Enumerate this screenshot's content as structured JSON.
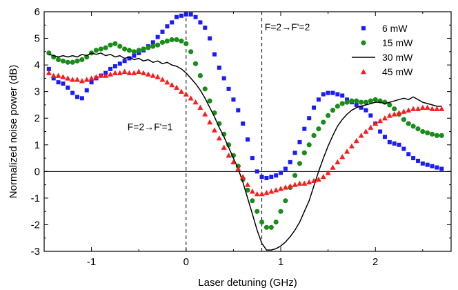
{
  "chart_data": {
    "type": "scatter",
    "xlabel": "Laser detuning (GHz)",
    "ylabel": "Normalized noise power (dB)",
    "xlim": [
      -1.5,
      2.8
    ],
    "ylim": [
      -3,
      6
    ],
    "x_ticks": [
      -1,
      0,
      1,
      2
    ],
    "x_tick_labels": [
      "-1",
      "0",
      "1",
      "2"
    ],
    "y_ticks": [
      -3,
      -2,
      -1,
      0,
      1,
      2,
      3,
      4,
      5,
      6
    ],
    "y_tick_labels": [
      "-3",
      "-2",
      "-1",
      "0",
      "1",
      "2",
      "3",
      "4",
      "5",
      "6"
    ],
    "grid": false,
    "legend_position": "top-right",
    "reference_lines": {
      "horizontal_y": 0,
      "vertical_x": [
        0,
        0.8
      ]
    },
    "annotations": [
      {
        "text": "F=2→F'=2",
        "x": 0.83,
        "y": 5.3
      },
      {
        "text": "F=2→F'=1",
        "x": -0.62,
        "y": 1.55
      }
    ],
    "series": [
      {
        "name": "6 mW",
        "marker": "square",
        "color": "#1a1aff",
        "x": [
          -1.45,
          -1.4,
          -1.35,
          -1.3,
          -1.25,
          -1.2,
          -1.15,
          -1.1,
          -1.05,
          -1.0,
          -0.95,
          -0.9,
          -0.85,
          -0.8,
          -0.75,
          -0.7,
          -0.65,
          -0.6,
          -0.55,
          -0.5,
          -0.45,
          -0.4,
          -0.35,
          -0.3,
          -0.25,
          -0.2,
          -0.15,
          -0.1,
          -0.05,
          0.0,
          0.05,
          0.1,
          0.15,
          0.2,
          0.25,
          0.3,
          0.35,
          0.4,
          0.45,
          0.5,
          0.55,
          0.6,
          0.65,
          0.7,
          0.75,
          0.8,
          0.85,
          0.9,
          0.95,
          1.0,
          1.05,
          1.1,
          1.15,
          1.2,
          1.25,
          1.3,
          1.35,
          1.4,
          1.45,
          1.5,
          1.55,
          1.6,
          1.65,
          1.7,
          1.75,
          1.8,
          1.85,
          1.9,
          1.95,
          2.0,
          2.05,
          2.1,
          2.15,
          2.2,
          2.25,
          2.3,
          2.35,
          2.4,
          2.45,
          2.5,
          2.55,
          2.6,
          2.65,
          2.7
        ],
        "y": [
          3.85,
          3.5,
          3.35,
          3.3,
          3.15,
          2.95,
          2.8,
          2.75,
          3.05,
          3.35,
          3.5,
          3.6,
          3.7,
          3.85,
          3.95,
          4.05,
          4.15,
          4.25,
          4.35,
          4.45,
          4.55,
          4.7,
          4.85,
          5.05,
          5.25,
          5.45,
          5.6,
          5.8,
          5.85,
          5.9,
          5.9,
          5.8,
          5.6,
          5.4,
          5.0,
          4.4,
          3.9,
          3.5,
          3.1,
          2.7,
          2.3,
          1.8,
          1.2,
          0.5,
          0.0,
          -0.2,
          -0.25,
          -0.2,
          -0.15,
          -0.05,
          0.1,
          0.35,
          0.7,
          1.1,
          1.6,
          2.0,
          2.4,
          2.7,
          2.9,
          2.95,
          2.95,
          2.9,
          2.85,
          2.7,
          2.6,
          2.5,
          2.4,
          2.3,
          2.1,
          1.8,
          1.5,
          1.3,
          1.1,
          1.05,
          1.0,
          0.85,
          0.65,
          0.5,
          0.4,
          0.3,
          0.25,
          0.2,
          0.15,
          0.1
        ]
      },
      {
        "name": "15 mW",
        "marker": "circle",
        "color": "#1a8c1a",
        "x": [
          -1.45,
          -1.4,
          -1.35,
          -1.3,
          -1.25,
          -1.2,
          -1.15,
          -1.1,
          -1.05,
          -1.0,
          -0.95,
          -0.9,
          -0.85,
          -0.8,
          -0.75,
          -0.7,
          -0.65,
          -0.6,
          -0.55,
          -0.5,
          -0.45,
          -0.4,
          -0.35,
          -0.3,
          -0.25,
          -0.2,
          -0.15,
          -0.1,
          -0.05,
          0.0,
          0.05,
          0.1,
          0.15,
          0.2,
          0.25,
          0.3,
          0.35,
          0.4,
          0.45,
          0.5,
          0.55,
          0.6,
          0.65,
          0.7,
          0.75,
          0.8,
          0.85,
          0.9,
          0.95,
          1.0,
          1.05,
          1.1,
          1.15,
          1.2,
          1.25,
          1.3,
          1.35,
          1.4,
          1.45,
          1.5,
          1.55,
          1.6,
          1.65,
          1.7,
          1.75,
          1.8,
          1.85,
          1.9,
          1.95,
          2.0,
          2.05,
          2.1,
          2.15,
          2.2,
          2.25,
          2.3,
          2.35,
          2.4,
          2.45,
          2.5,
          2.55,
          2.6,
          2.65,
          2.7
        ],
        "y": [
          4.45,
          4.3,
          4.2,
          4.15,
          4.1,
          4.1,
          4.15,
          4.2,
          4.3,
          4.45,
          4.55,
          4.6,
          4.65,
          4.75,
          4.8,
          4.7,
          4.6,
          4.55,
          4.5,
          4.55,
          4.6,
          4.65,
          4.7,
          4.75,
          4.85,
          4.9,
          4.95,
          4.95,
          4.9,
          4.8,
          4.5,
          4.05,
          3.6,
          3.1,
          2.65,
          2.2,
          1.8,
          1.4,
          1.0,
          0.6,
          0.2,
          -0.3,
          -0.7,
          -1.1,
          -1.5,
          -1.9,
          -2.1,
          -2.1,
          -1.9,
          -1.5,
          -1.1,
          -0.6,
          -0.15,
          0.3,
          0.7,
          1.0,
          1.35,
          1.6,
          1.85,
          2.1,
          2.3,
          2.45,
          2.55,
          2.6,
          2.65,
          2.65,
          2.6,
          2.6,
          2.65,
          2.7,
          2.65,
          2.6,
          2.5,
          2.35,
          2.15,
          1.95,
          1.8,
          1.7,
          1.6,
          1.5,
          1.45,
          1.4,
          1.35,
          1.35
        ]
      },
      {
        "name": "30 mW",
        "marker": "line",
        "color": "#000000",
        "x": [
          -1.45,
          -1.4,
          -1.35,
          -1.3,
          -1.25,
          -1.2,
          -1.15,
          -1.1,
          -1.05,
          -1.0,
          -0.95,
          -0.9,
          -0.85,
          -0.8,
          -0.75,
          -0.7,
          -0.65,
          -0.6,
          -0.55,
          -0.5,
          -0.45,
          -0.4,
          -0.35,
          -0.3,
          -0.25,
          -0.2,
          -0.15,
          -0.1,
          -0.05,
          0.0,
          0.05,
          0.1,
          0.15,
          0.2,
          0.25,
          0.3,
          0.35,
          0.4,
          0.45,
          0.5,
          0.55,
          0.6,
          0.65,
          0.7,
          0.75,
          0.8,
          0.85,
          0.9,
          0.95,
          1.0,
          1.05,
          1.1,
          1.15,
          1.2,
          1.25,
          1.3,
          1.35,
          1.4,
          1.45,
          1.5,
          1.55,
          1.6,
          1.65,
          1.7,
          1.75,
          1.8,
          1.85,
          1.9,
          1.95,
          2.0,
          2.05,
          2.1,
          2.15,
          2.2,
          2.25,
          2.3,
          2.35,
          2.4,
          2.45,
          2.5,
          2.55,
          2.6,
          2.65,
          2.7
        ],
        "y": [
          4.4,
          4.35,
          4.3,
          4.35,
          4.3,
          4.35,
          4.3,
          4.4,
          4.35,
          4.45,
          4.4,
          4.45,
          4.35,
          4.4,
          4.3,
          4.35,
          4.25,
          4.3,
          4.2,
          4.25,
          4.15,
          4.2,
          4.1,
          4.15,
          4.05,
          4.1,
          4.0,
          3.95,
          3.85,
          3.7,
          3.5,
          3.3,
          3.05,
          2.75,
          2.4,
          2.05,
          1.65,
          1.3,
          0.9,
          0.5,
          0.1,
          -0.4,
          -1.0,
          -1.6,
          -2.2,
          -2.7,
          -2.95,
          -2.95,
          -2.9,
          -2.8,
          -2.65,
          -2.45,
          -2.2,
          -1.9,
          -1.5,
          -1.1,
          -0.55,
          0.0,
          0.5,
          0.95,
          1.35,
          1.7,
          1.95,
          2.15,
          2.3,
          2.4,
          2.45,
          2.5,
          2.55,
          2.6,
          2.6,
          2.55,
          2.6,
          2.65,
          2.7,
          2.75,
          2.7,
          2.8,
          2.7,
          2.6,
          2.55,
          2.5,
          2.45,
          2.45
        ]
      },
      {
        "name": "45 mW",
        "marker": "triangle",
        "color": "#ff1a1a",
        "x": [
          -1.45,
          -1.4,
          -1.35,
          -1.3,
          -1.25,
          -1.2,
          -1.15,
          -1.1,
          -1.05,
          -1.0,
          -0.95,
          -0.9,
          -0.85,
          -0.8,
          -0.75,
          -0.7,
          -0.65,
          -0.6,
          -0.55,
          -0.5,
          -0.45,
          -0.4,
          -0.35,
          -0.3,
          -0.25,
          -0.2,
          -0.15,
          -0.1,
          -0.05,
          0.0,
          0.05,
          0.1,
          0.15,
          0.2,
          0.25,
          0.3,
          0.35,
          0.4,
          0.45,
          0.5,
          0.55,
          0.6,
          0.65,
          0.7,
          0.75,
          0.8,
          0.85,
          0.9,
          0.95,
          1.0,
          1.05,
          1.1,
          1.15,
          1.2,
          1.25,
          1.3,
          1.35,
          1.4,
          1.45,
          1.5,
          1.55,
          1.6,
          1.65,
          1.7,
          1.75,
          1.8,
          1.85,
          1.9,
          1.95,
          2.0,
          2.05,
          2.1,
          2.15,
          2.2,
          2.25,
          2.3,
          2.35,
          2.4,
          2.45,
          2.5,
          2.55,
          2.6,
          2.65,
          2.7
        ],
        "y": [
          3.7,
          3.6,
          3.6,
          3.55,
          3.5,
          3.45,
          3.45,
          3.4,
          3.45,
          3.5,
          3.55,
          3.6,
          3.6,
          3.65,
          3.7,
          3.7,
          3.75,
          3.7,
          3.7,
          3.75,
          3.7,
          3.65,
          3.6,
          3.55,
          3.45,
          3.35,
          3.25,
          3.15,
          3.0,
          2.9,
          2.75,
          2.6,
          2.4,
          2.15,
          1.85,
          1.55,
          1.25,
          0.9,
          0.6,
          0.35,
          0.1,
          -0.2,
          -0.5,
          -0.75,
          -0.85,
          -0.85,
          -0.8,
          -0.75,
          -0.7,
          -0.65,
          -0.6,
          -0.55,
          -0.5,
          -0.45,
          -0.45,
          -0.4,
          -0.35,
          -0.3,
          -0.2,
          -0.05,
          0.15,
          0.35,
          0.55,
          0.75,
          0.95,
          1.15,
          1.35,
          1.5,
          1.65,
          1.8,
          1.9,
          2.0,
          2.1,
          2.15,
          2.2,
          2.25,
          2.3,
          2.35,
          2.35,
          2.4,
          2.4,
          2.35,
          2.35,
          2.35
        ]
      }
    ]
  }
}
